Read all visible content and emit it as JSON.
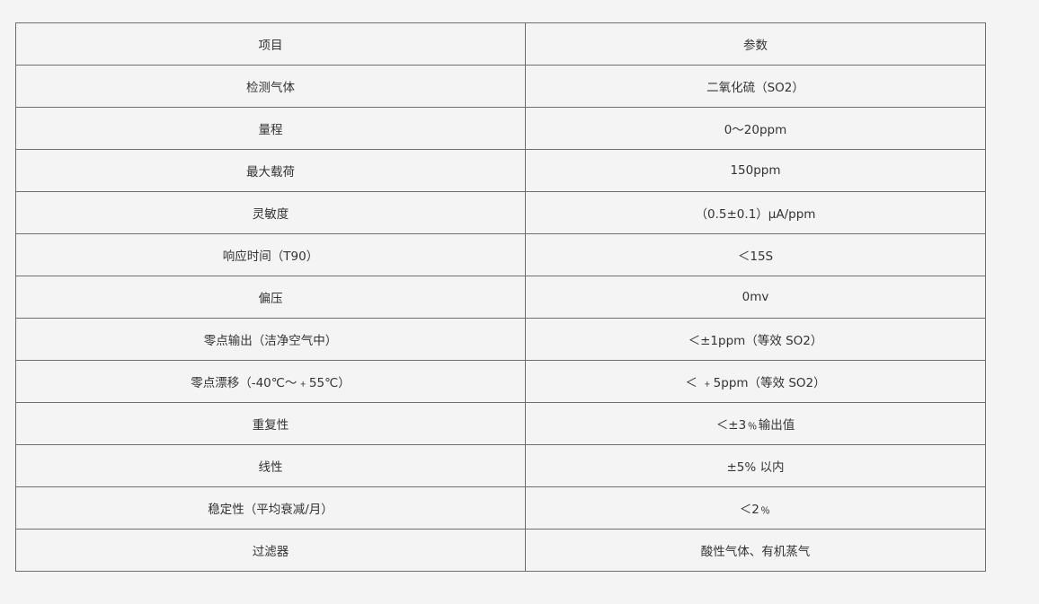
{
  "table": {
    "header": [
      "项目",
      "参数"
    ],
    "rows": [
      [
        "检测气体",
        "二氧化硫（SO2）"
      ],
      [
        "量程",
        "0～20ppm"
      ],
      [
        "最大载荷",
        "150ppm"
      ],
      [
        "灵敏度",
        "（0.5±0.1）μA/ppm"
      ],
      [
        "响应时间（T90）",
        "＜15S"
      ],
      [
        "偏压",
        "0mv"
      ],
      [
        "零点输出（洁净空气中）",
        "＜±1ppm（等效 SO2）"
      ],
      [
        "零点漂移（-40℃～﹢55℃）",
        "＜ ﹢5ppm（等效 SO2）"
      ],
      [
        "重复性",
        "＜±3﹪输出值"
      ],
      [
        "线性",
        "±5% 以内"
      ],
      [
        "稳定性（平均衰减/月）",
        "＜2﹪"
      ],
      [
        "过滤器",
        "酸性气体、有机蒸气"
      ]
    ]
  }
}
